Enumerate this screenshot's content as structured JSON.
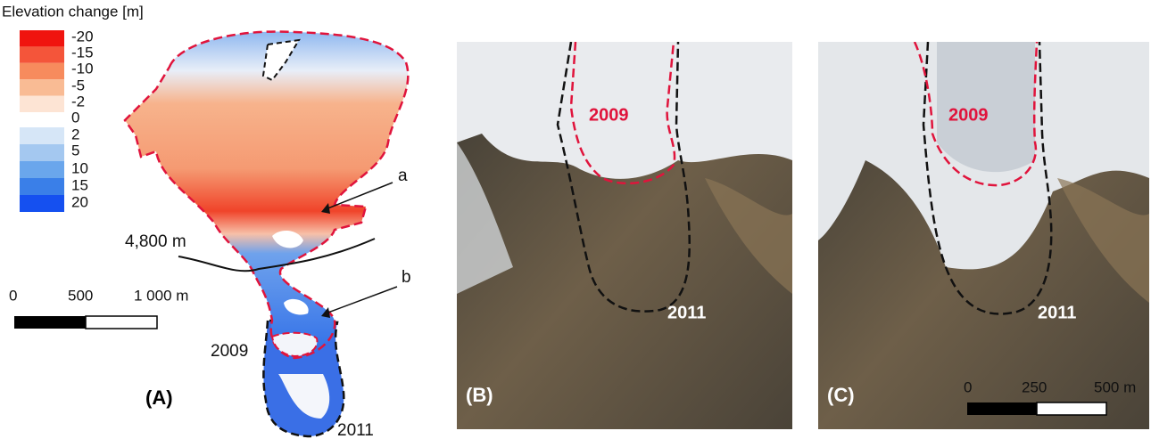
{
  "panel_a": {
    "legend": {
      "title": "Elevation change [m]",
      "labels": [
        "-20",
        "-15",
        "-10",
        "-5",
        "-2",
        "0",
        "2",
        "5",
        "10",
        "15",
        "20"
      ]
    },
    "contour_label": "4,800 m",
    "scale_bar": {
      "labels": [
        "0",
        "500",
        "1 000 m"
      ]
    },
    "annotations": [
      "a",
      "b"
    ],
    "outline_labels": [
      "2009",
      "2011"
    ],
    "panel_label": "(A)"
  },
  "panel_b": {
    "outline_labels": [
      "2009",
      "2011"
    ],
    "panel_label": "(B)"
  },
  "panel_c": {
    "outline_labels": [
      "2009",
      "2011"
    ],
    "scale_bar": {
      "labels": [
        "0",
        "250",
        "500 m"
      ]
    },
    "panel_label": "(C)"
  }
}
